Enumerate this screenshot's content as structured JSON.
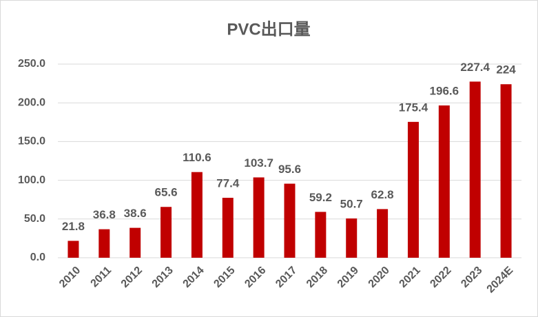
{
  "chart_data": {
    "type": "bar",
    "title": "PVC出口量",
    "categories": [
      "2010",
      "2011",
      "2012",
      "2013",
      "2014",
      "2015",
      "2016",
      "2017",
      "2018",
      "2019",
      "2020",
      "2021",
      "2022",
      "2023",
      "2024E"
    ],
    "values": [
      21.8,
      36.8,
      38.6,
      65.6,
      110.6,
      77.4,
      103.7,
      95.6,
      59.2,
      50.7,
      62.8,
      175.4,
      196.6,
      227.4,
      224
    ],
    "color": "#c00000",
    "ylim": [
      0,
      250
    ],
    "yticks": [
      {
        "value": 0,
        "label": "0.0"
      },
      {
        "value": 50,
        "label": "50.0"
      },
      {
        "value": 100,
        "label": "100.0"
      },
      {
        "value": 150,
        "label": "150.0"
      },
      {
        "value": 200,
        "label": "200.0"
      },
      {
        "value": 250,
        "label": "250.0"
      }
    ],
    "grid": true
  }
}
